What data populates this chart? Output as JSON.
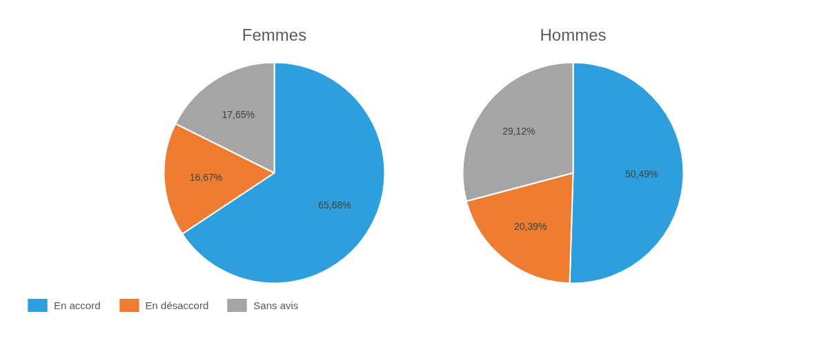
{
  "chart_data": [
    {
      "type": "pie",
      "title": "Femmes",
      "categories": [
        "En accord",
        "En désaccord",
        "Sans avis"
      ],
      "values": [
        65.68,
        16.67,
        17.65
      ],
      "colors": [
        "#2e9fdc",
        "#ee7d31",
        "#a5a5a5"
      ],
      "value_labels": [
        "65,68%",
        "16,67%",
        "17,65%"
      ],
      "legend": "bottom left"
    },
    {
      "type": "pie",
      "title": "Hommes",
      "categories": [
        null,
        null,
        null
      ],
      "values": [
        50.49,
        20.39,
        29.12
      ],
      "colors": [
        "#2e9fdc",
        "#ee7d31",
        "#a5a5a5"
      ],
      "value_labels": [
        "50,49%",
        "20,39%",
        "29,12%"
      ]
    }
  ]
}
